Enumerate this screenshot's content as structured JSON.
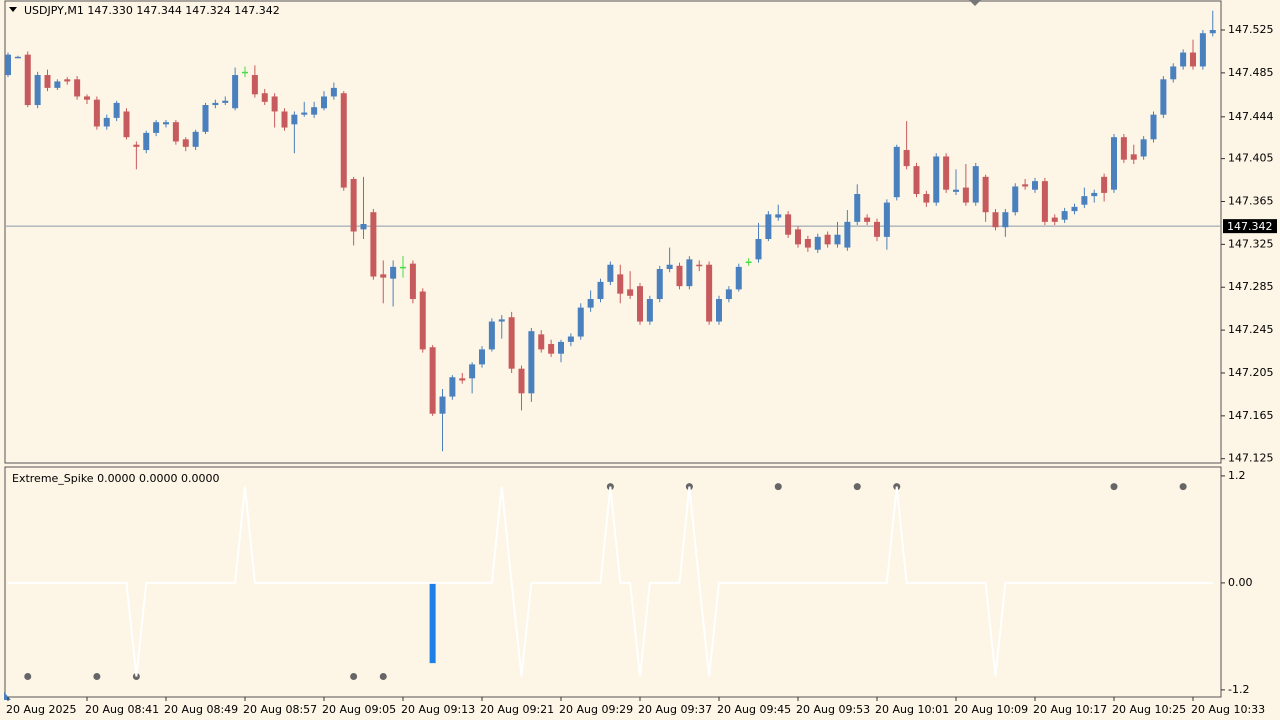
{
  "chart_data": [
    {
      "type": "candlestick",
      "title": "USDJPY,M1  147.330 147.344 147.324 147.342",
      "categories": [
        "20 Aug 2025",
        null,
        null,
        null,
        null,
        null,
        null,
        null,
        "20 Aug 08:41",
        null,
        null,
        null,
        null,
        null,
        null,
        null,
        "20 Aug 08:49",
        null,
        null,
        null,
        null,
        null,
        null,
        null,
        "20 Aug 08:57",
        null,
        null,
        null,
        null,
        null,
        null,
        null,
        "20 Aug 09:05",
        null,
        null,
        null,
        null,
        null,
        null,
        null,
        "20 Aug 09:13",
        null,
        null,
        null,
        null,
        null,
        null,
        null,
        "20 Aug 09:21",
        null,
        null,
        null,
        null,
        null,
        null,
        null,
        "20 Aug 09:29",
        null,
        null,
        null,
        null,
        null,
        null,
        null,
        "20 Aug 09:37",
        null,
        null,
        null,
        null,
        null,
        null,
        null,
        "20 Aug 09:45",
        null,
        null,
        null,
        null,
        null,
        null,
        null,
        "20 Aug 09:53",
        null,
        null,
        null,
        null,
        null,
        null,
        null,
        "20 Aug 10:01",
        null,
        null,
        null,
        null,
        null,
        null,
        null,
        "20 Aug 10:09",
        null,
        null,
        null,
        null,
        null,
        null,
        null,
        "20 Aug 10:17",
        null,
        null,
        null,
        null,
        null,
        null,
        null,
        "20 Aug 10:25",
        null,
        null,
        null,
        null,
        null,
        null,
        null,
        "20 Aug 10:33",
        null,
        null
      ],
      "open": [
        147.483,
        147.499,
        147.502,
        147.455,
        147.483,
        147.471,
        147.479,
        147.479,
        147.463,
        147.46,
        147.435,
        147.443,
        147.449,
        147.418,
        147.413,
        147.429,
        147.437,
        147.439,
        147.423,
        147.416,
        147.43,
        147.455,
        147.457,
        147.452,
        147.486,
        147.483,
        147.466,
        147.463,
        147.449,
        147.437,
        147.446,
        147.446,
        147.452,
        147.463,
        147.466,
        147.386,
        147.339,
        147.355,
        147.297,
        147.293,
        147.304,
        147.307,
        147.281,
        147.229,
        147.167,
        147.183,
        147.2,
        147.2,
        147.213,
        147.227,
        147.253,
        147.257,
        147.209,
        147.186,
        147.241,
        147.232,
        147.223,
        147.234,
        147.239,
        147.266,
        147.274,
        147.29,
        147.297,
        147.283,
        147.286,
        147.253,
        147.274,
        147.302,
        147.305,
        147.286,
        147.306,
        147.306,
        147.253,
        147.274,
        147.283,
        147.309,
        147.311,
        147.33,
        147.35,
        147.353,
        147.339,
        147.33,
        147.32,
        147.334,
        147.325,
        147.322,
        147.346,
        147.35,
        147.346,
        147.332,
        147.369,
        147.413,
        147.398,
        147.372,
        147.364,
        147.407,
        147.374,
        147.378,
        147.364,
        147.388,
        147.355,
        147.341,
        147.355,
        147.381,
        147.376,
        147.384,
        147.35,
        147.348,
        147.356,
        147.362,
        147.37,
        147.388,
        147.376,
        147.425,
        147.409,
        147.407,
        147.423,
        147.446,
        147.479,
        147.491,
        147.504,
        147.491,
        147.522
      ],
      "high": [
        147.504,
        147.501,
        147.505,
        147.486,
        147.488,
        147.479,
        147.481,
        147.482,
        147.465,
        147.463,
        147.446,
        147.459,
        147.452,
        147.421,
        147.431,
        147.441,
        147.441,
        147.441,
        147.425,
        147.432,
        147.457,
        147.46,
        147.463,
        147.49,
        147.491,
        147.492,
        147.47,
        147.466,
        147.452,
        147.449,
        147.458,
        147.458,
        147.468,
        147.476,
        147.468,
        147.388,
        147.388,
        147.358,
        147.31,
        147.31,
        147.314,
        147.31,
        147.284,
        147.231,
        147.19,
        147.203,
        147.205,
        147.215,
        147.23,
        147.256,
        147.259,
        147.262,
        147.212,
        147.247,
        147.245,
        147.236,
        147.236,
        147.242,
        147.27,
        147.282,
        147.293,
        147.309,
        147.306,
        147.3,
        147.289,
        147.277,
        147.305,
        147.322,
        147.308,
        147.314,
        147.31,
        147.309,
        147.277,
        147.286,
        147.307,
        147.312,
        147.345,
        147.356,
        147.362,
        147.356,
        147.342,
        147.333,
        147.335,
        147.337,
        147.346,
        147.357,
        147.381,
        147.353,
        147.349,
        147.367,
        147.418,
        147.44,
        147.401,
        147.375,
        147.41,
        147.41,
        147.395,
        147.4,
        147.401,
        147.39,
        147.358,
        147.358,
        147.382,
        147.386,
        147.387,
        147.387,
        147.353,
        147.359,
        147.363,
        147.378,
        147.376,
        147.391,
        147.428,
        147.428,
        147.418,
        147.426,
        147.449,
        147.482,
        147.494,
        147.507,
        147.516,
        147.525,
        147.543
      ],
      "low": [
        147.481,
        147.499,
        147.453,
        147.452,
        147.468,
        147.469,
        147.474,
        147.46,
        147.456,
        147.432,
        147.432,
        147.44,
        147.423,
        147.395,
        147.41,
        147.426,
        147.434,
        147.418,
        147.412,
        147.413,
        147.428,
        147.452,
        147.455,
        147.45,
        147.481,
        147.462,
        147.455,
        147.434,
        147.431,
        147.41,
        147.444,
        147.443,
        147.45,
        147.46,
        147.375,
        147.324,
        147.33,
        147.292,
        147.27,
        147.267,
        147.294,
        147.27,
        147.224,
        147.165,
        147.132,
        147.18,
        147.195,
        147.186,
        147.21,
        147.225,
        147.237,
        147.205,
        147.17,
        147.178,
        147.224,
        147.22,
        147.215,
        147.23,
        147.236,
        147.262,
        147.271,
        147.287,
        147.27,
        147.274,
        147.25,
        147.25,
        147.271,
        147.299,
        147.283,
        147.283,
        147.3,
        147.25,
        147.25,
        147.271,
        147.281,
        147.305,
        147.308,
        147.328,
        147.347,
        147.331,
        147.322,
        147.318,
        147.317,
        147.322,
        147.322,
        147.319,
        147.343,
        147.343,
        147.328,
        147.32,
        147.366,
        147.395,
        147.369,
        147.36,
        147.361,
        147.373,
        147.371,
        147.361,
        147.361,
        147.346,
        147.338,
        147.332,
        147.352,
        147.376,
        147.373,
        147.343,
        147.343,
        147.345,
        147.353,
        147.359,
        147.364,
        147.365,
        147.373,
        147.401,
        147.4,
        147.404,
        147.42,
        147.443,
        147.476,
        147.488,
        147.488,
        147.488,
        147.519
      ],
      "close": [
        147.502,
        147.5,
        147.455,
        147.483,
        147.471,
        147.477,
        147.477,
        147.463,
        147.46,
        147.435,
        147.443,
        147.457,
        147.425,
        147.416,
        147.429,
        147.439,
        147.439,
        147.421,
        147.416,
        147.43,
        147.455,
        147.457,
        147.459,
        147.483,
        147.486,
        147.465,
        147.458,
        147.449,
        147.434,
        147.446,
        147.448,
        147.453,
        147.463,
        147.471,
        147.378,
        147.337,
        147.344,
        147.295,
        147.294,
        147.304,
        147.304,
        147.274,
        147.227,
        147.167,
        147.183,
        147.201,
        147.198,
        147.213,
        147.227,
        147.253,
        147.255,
        147.209,
        147.186,
        147.244,
        147.227,
        147.223,
        147.234,
        147.239,
        147.266,
        147.274,
        147.29,
        147.306,
        147.279,
        147.277,
        147.253,
        147.274,
        147.302,
        147.306,
        147.286,
        147.311,
        147.305,
        147.253,
        147.274,
        147.283,
        147.304,
        147.309,
        147.33,
        147.353,
        147.353,
        147.334,
        147.325,
        147.322,
        147.332,
        147.325,
        147.334,
        147.346,
        147.372,
        147.346,
        147.332,
        147.364,
        147.416,
        147.398,
        147.372,
        147.364,
        147.407,
        147.376,
        147.376,
        147.364,
        147.398,
        147.355,
        147.341,
        147.355,
        147.379,
        147.379,
        147.384,
        147.346,
        147.346,
        147.356,
        147.36,
        147.37,
        147.373,
        147.373,
        147.425,
        147.404,
        147.404,
        147.423,
        147.446,
        147.479,
        147.491,
        147.504,
        147.491,
        147.522,
        147.525
      ],
      "colors": {
        "up": "#4a80bd",
        "down": "#c75a5c",
        "doji": "#44dd44"
      },
      "price_line": 147.342,
      "ylim": [
        147.121,
        147.553
      ],
      "yticks": [
        147.525,
        147.485,
        147.444,
        147.405,
        147.365,
        147.325,
        147.285,
        147.245,
        147.205,
        147.165,
        147.125
      ]
    },
    {
      "type": "line",
      "title": "Extreme_Spike 0.0000 0.0000 0.0000",
      "series": [
        {
          "type": "line",
          "color": "#ffffff",
          "values": [
            0,
            0,
            0,
            0,
            0,
            0,
            0,
            0,
            0,
            0,
            0,
            0,
            0,
            -1.05,
            0,
            0,
            0,
            0,
            0,
            0,
            0,
            0,
            0,
            0,
            1.08,
            0,
            0,
            0,
            0,
            0,
            0,
            0,
            0,
            0,
            0,
            0,
            0,
            0,
            0,
            0,
            0,
            0,
            0,
            0,
            0,
            0,
            0,
            0,
            0,
            0,
            1.08,
            0,
            -1.05,
            0,
            0,
            0,
            0,
            0,
            0,
            0,
            0,
            1.08,
            0,
            0,
            -1.05,
            0,
            0,
            0,
            0,
            1.08,
            0,
            -1.05,
            0,
            0,
            0,
            0,
            0,
            0,
            0,
            0,
            0,
            0,
            0,
            0,
            0,
            0,
            0,
            0,
            0,
            0,
            1.08,
            0,
            0,
            0,
            0,
            0,
            0,
            0,
            0,
            0,
            -1.05,
            0,
            0,
            0,
            0,
            0,
            0,
            0,
            0,
            0,
            0,
            0,
            0,
            0,
            0,
            0,
            0,
            0,
            0,
            0,
            0,
            0,
            0
          ]
        },
        {
          "type": "bar",
          "color": "#1e7fe6",
          "x": [
            43
          ],
          "values": [
            -0.9
          ]
        },
        {
          "type": "scatter",
          "color": "#666666",
          "x": [
            61,
            69,
            78,
            86,
            90,
            112,
            119
          ],
          "values": [
            1.08,
            1.08,
            1.08,
            1.08,
            1.08,
            1.08,
            1.08
          ]
        },
        {
          "type": "scatter",
          "color": "#666666",
          "x": [
            2,
            9,
            13,
            35,
            38
          ],
          "values": [
            -1.05,
            -1.05,
            -1.05,
            -1.05,
            -1.05
          ]
        }
      ],
      "ylim": [
        -1.28,
        1.3
      ],
      "yticks": [
        1.2,
        {
          "value": 0,
          "label": "0.00"
        },
        -1.2
      ]
    }
  ]
}
